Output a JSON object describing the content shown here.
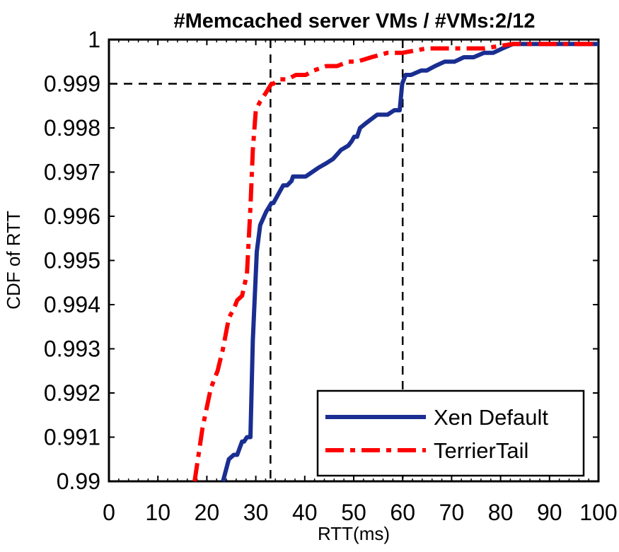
{
  "chart_data": {
    "type": "line",
    "title": "#Memcached server VMs / #VMs:2/12",
    "xlabel": "RTT(ms)",
    "ylabel": "CDF of RTT",
    "xlim": [
      0,
      100
    ],
    "ylim": [
      0.99,
      1
    ],
    "xticks": [
      0,
      10,
      20,
      30,
      40,
      50,
      60,
      70,
      80,
      90,
      100
    ],
    "xtick_labels": [
      "0",
      "10",
      "20",
      "30",
      "40",
      "50",
      "60",
      "70",
      "80",
      "90",
      "100"
    ],
    "yticks": [
      0.99,
      0.991,
      0.992,
      0.993,
      0.994,
      0.995,
      0.996,
      0.997,
      0.998,
      0.999,
      1
    ],
    "ytick_labels": [
      "0.99",
      "0.991",
      "0.992",
      "0.993",
      "0.994",
      "0.995",
      "0.996",
      "0.997",
      "0.998",
      "0.999",
      "1"
    ],
    "grid": false,
    "legend_position": "bottom-right",
    "reference_lines": {
      "horizontal": [
        0.999
      ],
      "vertical": [
        33,
        60
      ]
    },
    "series": [
      {
        "name": "Xen Default",
        "color": "#1a2e91",
        "style": "solid",
        "x": [
          23.3,
          24.5,
          25.5,
          26.2,
          27.2,
          27.6,
          28.2,
          28.9,
          29.4,
          30.2,
          30.9,
          32.1,
          33.2,
          33.6,
          34.6,
          35.6,
          36.4,
          37.3,
          37.6,
          38.2,
          39.4,
          40.2,
          41.5,
          42.8,
          44.4,
          45.8,
          46.6,
          47.4,
          48.9,
          49.6,
          50.1,
          50.7,
          51.3,
          52.4,
          53.6,
          54.8,
          55.8,
          56.9,
          58.3,
          59.4,
          59.9,
          60.6,
          61.7,
          63.8,
          64.9,
          66.6,
          68.6,
          70.6,
          72.5,
          74.5,
          76.6,
          78.5,
          80.4,
          82.5,
          84.6,
          86.5,
          88.5,
          91.1,
          93.4,
          95.6,
          97.7,
          100
        ],
        "values": [
          0.99,
          0.9905,
          0.9906,
          0.9906,
          0.9909,
          0.9909,
          0.991,
          0.991,
          0.9932,
          0.9952,
          0.9958,
          0.9961,
          0.9963,
          0.9963,
          0.9965,
          0.9967,
          0.9967,
          0.9968,
          0.9969,
          0.9969,
          0.9969,
          0.9969,
          0.997,
          0.9971,
          0.9972,
          0.9973,
          0.9974,
          0.9975,
          0.9976,
          0.9977,
          0.9978,
          0.9978,
          0.998,
          0.9981,
          0.9982,
          0.9983,
          0.9983,
          0.9983,
          0.9984,
          0.9984,
          0.999,
          0.9992,
          0.9992,
          0.9993,
          0.9993,
          0.9994,
          0.9995,
          0.9995,
          0.9996,
          0.9996,
          0.9997,
          0.9997,
          0.9998,
          0.9999,
          0.9999,
          0.9999,
          0.9999,
          0.9999,
          0.9999,
          0.9999,
          0.9999,
          0.9999
        ]
      },
      {
        "name": "TerrierTail",
        "color": "#ff0000",
        "style": "dashdot",
        "x": [
          17.5,
          19.1,
          20.8,
          22.2,
          23.3,
          24.5,
          25.5,
          26.2,
          27.2,
          27.6,
          28.2,
          28.9,
          29.4,
          30.0,
          30.9,
          32.1,
          33.2,
          33.6,
          34.6,
          36.4,
          38.2,
          40.2,
          41.8,
          44.4,
          46.6,
          48.9,
          50.7,
          53.6,
          56.9,
          60.0,
          64.9,
          70.6,
          76.6,
          82.5,
          86.5,
          91.1,
          95.6,
          100
        ],
        "values": [
          0.99,
          0.9912,
          0.9921,
          0.9925,
          0.993,
          0.9937,
          0.9939,
          0.9941,
          0.9942,
          0.9944,
          0.9947,
          0.9962,
          0.9975,
          0.9984,
          0.9986,
          0.9988,
          0.999,
          0.999,
          0.9991,
          0.9991,
          0.9992,
          0.9992,
          0.9993,
          0.9994,
          0.9994,
          0.9995,
          0.9995,
          0.9996,
          0.9997,
          0.9997,
          0.9998,
          0.9998,
          0.9998,
          0.9999,
          0.9999,
          0.9999,
          0.9999,
          0.9999
        ]
      }
    ]
  }
}
